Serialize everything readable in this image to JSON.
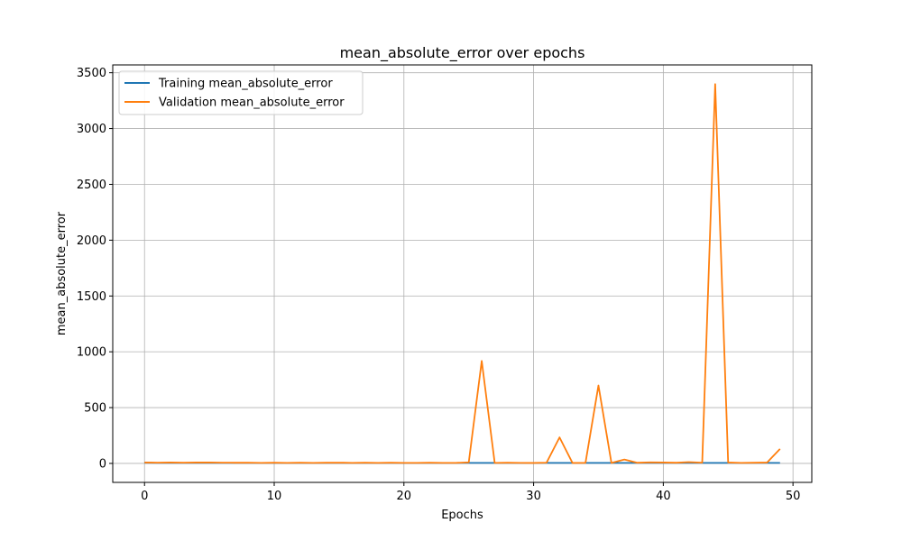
{
  "chart_data": {
    "type": "line",
    "title": "mean_absolute_error over epochs",
    "xlabel": "Epochs",
    "ylabel": "mean_absolute_error",
    "xlim": [
      -2.45,
      51.45
    ],
    "ylim": [
      -170,
      3570
    ],
    "x_ticks": [
      0,
      10,
      20,
      30,
      40,
      50
    ],
    "y_ticks": [
      0,
      500,
      1000,
      1500,
      2000,
      2500,
      3000,
      3500
    ],
    "grid": true,
    "legend_position": "top-left",
    "x": [
      0,
      1,
      2,
      3,
      4,
      5,
      6,
      7,
      8,
      9,
      10,
      11,
      12,
      13,
      14,
      15,
      16,
      17,
      18,
      19,
      20,
      21,
      22,
      23,
      24,
      25,
      26,
      27,
      28,
      29,
      30,
      31,
      32,
      33,
      34,
      35,
      36,
      37,
      38,
      39,
      40,
      41,
      42,
      43,
      44,
      45,
      46,
      47,
      48,
      49
    ],
    "series": [
      {
        "name": "Training mean_absolute_error",
        "color": "#1f77b4",
        "values": [
          6,
          5,
          5,
          5,
          5,
          5,
          5,
          5,
          5,
          5,
          5,
          5,
          5,
          5,
          5,
          5,
          5,
          5,
          5,
          5,
          5,
          5,
          5,
          5,
          5,
          5,
          5,
          5,
          5,
          5,
          5,
          5,
          5,
          5,
          5,
          5,
          5,
          5,
          5,
          5,
          5,
          5,
          5,
          5,
          5,
          5,
          5,
          5,
          5,
          5
        ]
      },
      {
        "name": "Validation mean_absolute_error",
        "color": "#ff7f0e",
        "values": [
          8,
          7,
          8,
          7,
          8,
          9,
          7,
          6,
          7,
          5,
          6,
          5,
          6,
          5,
          6,
          7,
          5,
          6,
          5,
          6,
          5,
          5,
          6,
          5,
          5,
          10,
          918,
          5,
          6,
          5,
          4,
          7,
          233,
          4,
          5,
          698,
          5,
          35,
          6,
          10,
          8,
          6,
          12,
          7,
          3398,
          8,
          5,
          6,
          8,
          130
        ]
      }
    ]
  }
}
